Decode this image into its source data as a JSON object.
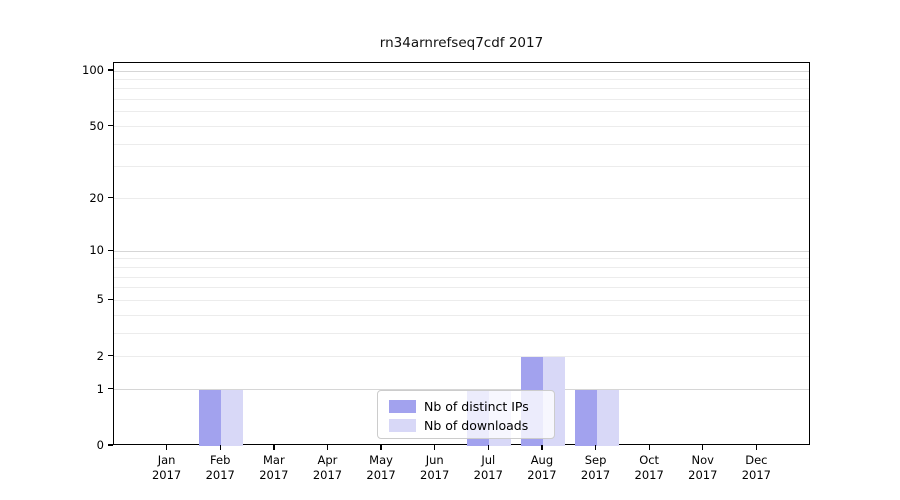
{
  "chart_data": {
    "type": "bar",
    "title": "rn34arnrefseq7cdf 2017",
    "categories": [
      "Jan 2017",
      "Feb 2017",
      "Mar 2017",
      "Apr 2017",
      "May 2017",
      "Jun 2017",
      "Jul 2017",
      "Aug 2017",
      "Sep 2017",
      "Oct 2017",
      "Nov 2017",
      "Dec 2017"
    ],
    "x_tick_months": [
      "Jan",
      "Feb",
      "Mar",
      "Apr",
      "May",
      "Jun",
      "Jul",
      "Aug",
      "Sep",
      "Oct",
      "Nov",
      "Dec"
    ],
    "x_tick_year": "2017",
    "series": [
      {
        "name": "Nb of distinct IPs",
        "color": "#a2a2ee",
        "values": [
          0,
          1,
          0,
          0,
          0,
          0,
          1,
          2,
          1,
          0,
          0,
          0
        ]
      },
      {
        "name": "Nb of downloads",
        "color": "#d8d8f7",
        "values": [
          0,
          1,
          0,
          0,
          0,
          0,
          1,
          2,
          1,
          0,
          0,
          0
        ]
      }
    ],
    "xlabel": "",
    "ylabel": "",
    "yscale": "log1p",
    "y_ticks": [
      0,
      1,
      2,
      5,
      10,
      20,
      50,
      100
    ],
    "ylim": [
      0,
      110
    ],
    "grid": {
      "major": [
        1,
        10,
        100
      ],
      "minor": [
        2,
        3,
        4,
        5,
        6,
        7,
        8,
        9,
        20,
        30,
        40,
        50,
        60,
        70,
        80,
        90
      ]
    },
    "legend": {
      "position": "lower-center-inside"
    }
  },
  "colors": {
    "grid_major": "#d6d6d6",
    "grid_minor": "#ececec",
    "spine": "#000000",
    "background": "#ffffff"
  }
}
